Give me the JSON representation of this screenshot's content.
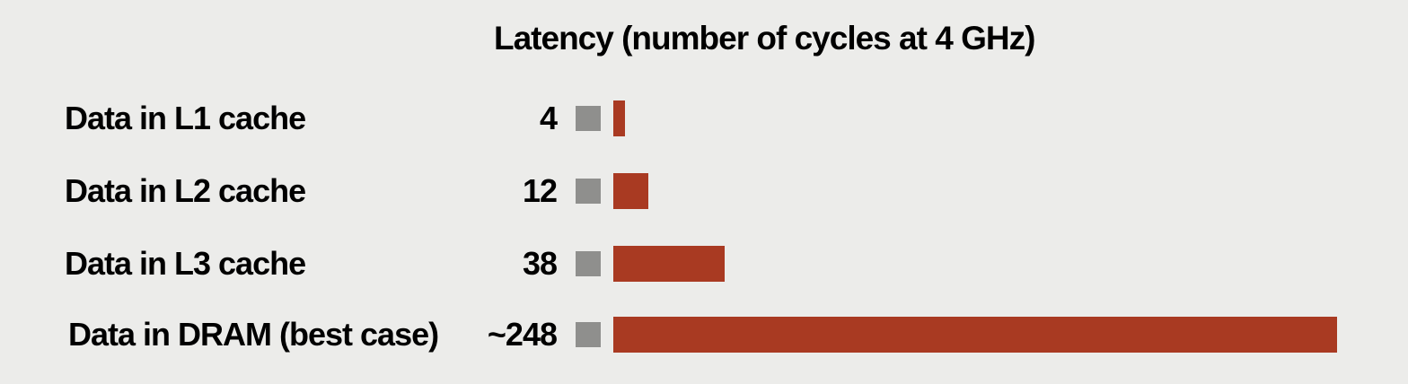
{
  "chart_data": {
    "type": "bar",
    "orientation": "horizontal",
    "title": "Latency (number of cycles at 4 GHz)",
    "categories": [
      "Data in L1 cache",
      "Data in L2 cache",
      "Data in L3 cache",
      "Data in DRAM (best case)"
    ],
    "values": [
      4,
      12,
      38,
      248
    ],
    "value_labels": [
      "4",
      "12",
      "38",
      "~248"
    ],
    "xlim": [
      0,
      248
    ],
    "grid": false,
    "legend": "none",
    "colors": {
      "bar": "#a93a22",
      "marker": "#8f8f8d",
      "background": "#ececea"
    }
  }
}
